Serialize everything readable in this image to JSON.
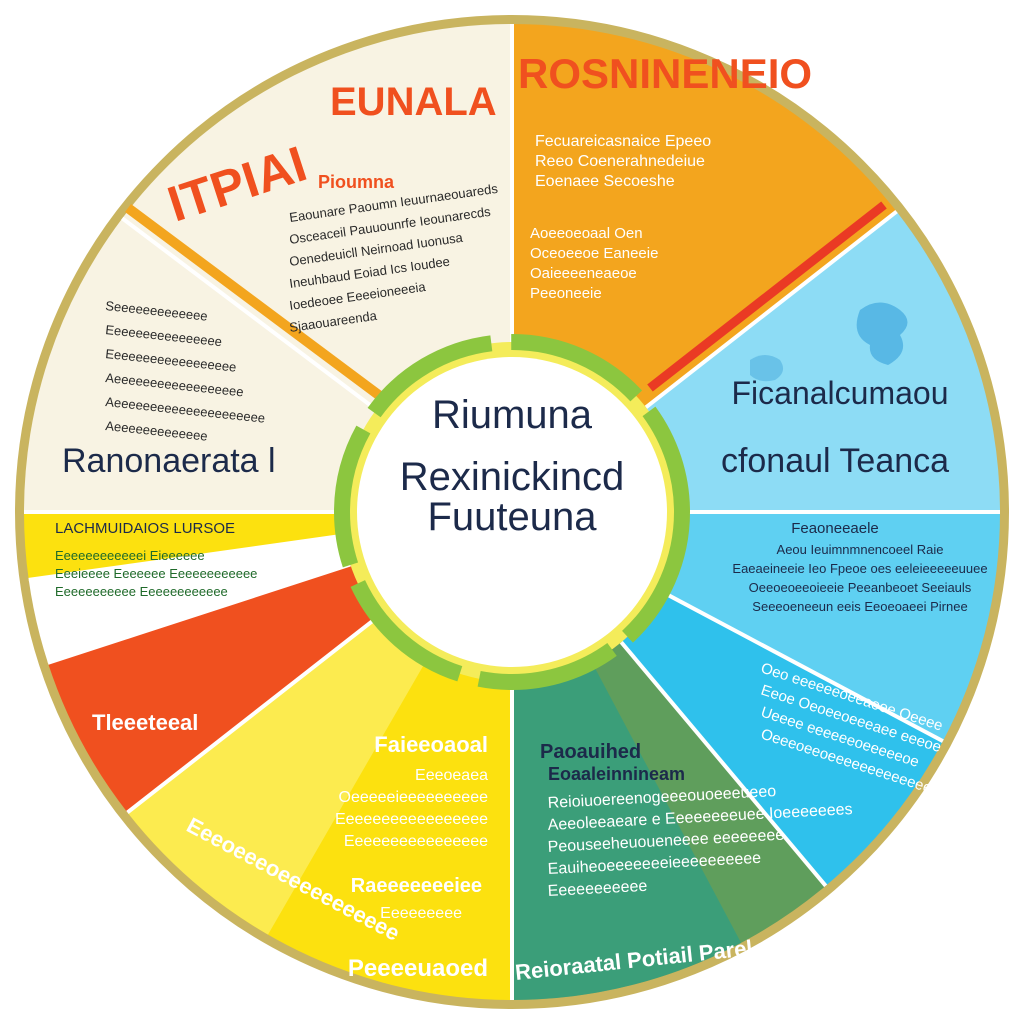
{
  "center": {
    "line1": "Riumuna",
    "line2": "Rexinickincd",
    "line3": "Fuuteuna"
  },
  "segments": {
    "top_left": {
      "title_left": "ITPIAI",
      "title_right": "EUNALA",
      "subtitle": "Pioumna",
      "lines": [
        "Eaounare Paoumn Ieuurnaeouareds",
        "Osceaceil Pauuounrfe Ieounarecds",
        "Oenedeuicll Neirnoad Iuonusa",
        "Ineuhbaud Eoiad Ics Ioudee",
        "Ioedeoee Eeeeioneeeia",
        "Sjaaouareenda"
      ]
    },
    "top_right": {
      "title": "ROSNINENEIO",
      "lines1": [
        "Fecuareicasnaice Epeeo",
        "Reeo Coenerahnedeiue",
        "Eoenaee Secoeshe"
      ],
      "lines2": [
        "Aoeeoeoaal Oen",
        "Oceoeeoe Eaneeie",
        "Oaieeeeneaeoe",
        "Peeoneeie"
      ]
    },
    "right_upper": {
      "title1": "Ficanalcumaou",
      "title2": "cfonaul Teanca"
    },
    "right_mid": {
      "subtitle": "Feaoneeaele",
      "lines": [
        "Aeou Ieuimnmnencoeel Raie",
        "Eaeaeineeie Ieo Fpeoe oes eeleieeeeeuuee",
        "Oeeoeoeeoieeie Peeanbeoet Seeiauls",
        "Seeeoeneeun eeis Eeoeoaeei Pirnee"
      ]
    },
    "right_lower": {
      "lines": [
        "Oeo eeeeeeoeeaeee Oeeee",
        "Eeoe Oeoeeoeeeaee eeeoe",
        "Ueeee eeeeeeoeeeeeoe",
        "Oeeeoeeoeeeeeeeeeeeee"
      ]
    },
    "bottom_right": {
      "subtitle1": "Paoauihed",
      "subtitle2": "Eoaaleinnineam",
      "lines": [
        "Reioiuoereenogeeeouoeeeueeo",
        "Aeeoleeaeare e Eeeeeeeeuee Ioeeeeeees",
        "Peouseeheuoueneeee eeeeeeee",
        "Eauiheoeeeeeeeieeeeeeeeee",
        "Eeeeeeeeeee"
      ],
      "footer": "Reioraatal Potiail Parel"
    },
    "bottom_left": {
      "subtitle": "Faieeoaoal",
      "lines": [
        "Eeeoeaea",
        "Oeeeeeieeeeeeeeee",
        "Eeeeeeeeeeeeeeeee",
        "Eeeeeeeeeeeeeeee"
      ],
      "subtitle2": "Raeeeeeeeiee",
      "lines2": [
        "Eeeeeeeee"
      ],
      "footer": "Peeeeuaoed",
      "curved": "Eeeoeeeoeeeeeeeeeee"
    },
    "left_red": {
      "title": "Tleeeteeal"
    },
    "left_yellow": {
      "header": "LACHMUIDAIOS LURSOE",
      "lines": [
        "Eeeeeeeeeeeei Eieeeeee",
        "Eeeieeee Eeeeeee Eeeeeeeeeeee",
        "Eeeeeeeeeee Eeeeeeeeeeee"
      ]
    },
    "left_upper": {
      "title": "Ranonaerata l",
      "lines": [
        "Seeeeeeeeeeeee",
        "Eeeeeeeeeeeeeeee",
        "Eeeeeeeeeeeeeeeeee",
        "Aeeeeeeeeeeeeeeeeee",
        "Aeeeeeeeeeeeeeeeeeeeee",
        "Aeeeeeeeeeeeee"
      ]
    }
  },
  "colors": {
    "ring": "#c9b45f",
    "cream": "#f8f3e3",
    "orange": "#f3a51e",
    "orange_red": "#f0501f",
    "sky": "#8ddcf5",
    "cyan": "#2fc1ec",
    "green": "#5f9e5c",
    "teal": "#1e9f92",
    "yellow": "#fce10f",
    "pale_yellow": "#fbf17a",
    "center_green": "#8cc63f"
  }
}
